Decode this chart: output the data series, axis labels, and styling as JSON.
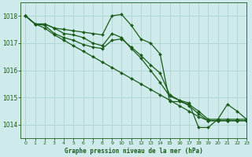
{
  "title": "Graphe pression niveau de la mer (hPa)",
  "bg_color": "#ceeaea",
  "grid_color": "#aed4d4",
  "line_color": "#1a5c1a",
  "xlim": [
    -0.5,
    23
  ],
  "ylim": [
    1013.5,
    1018.5
  ],
  "yticks": [
    1014,
    1015,
    1016,
    1017,
    1018
  ],
  "xticks": [
    0,
    1,
    2,
    3,
    4,
    5,
    6,
    7,
    8,
    9,
    10,
    11,
    12,
    13,
    14,
    15,
    16,
    17,
    18,
    19,
    20,
    21,
    22,
    23
  ],
  "series": [
    [
      1018.0,
      1017.7,
      1017.7,
      1017.55,
      1017.5,
      1017.45,
      1017.4,
      1017.35,
      1017.3,
      1018.0,
      1018.05,
      1017.65,
      1017.15,
      1017.0,
      1016.6,
      1014.85,
      1014.85,
      1014.75,
      1014.5,
      1014.2,
      1014.2,
      1014.75,
      1014.5,
      1014.2
    ],
    [
      1018.0,
      1017.7,
      1017.7,
      1017.55,
      1017.35,
      1017.3,
      1017.2,
      1017.0,
      1016.9,
      1017.35,
      1017.2,
      1016.8,
      1016.45,
      1016.0,
      1015.55,
      1015.05,
      1014.9,
      1014.8,
      1013.9,
      1013.9,
      1014.2,
      1014.2,
      1014.2,
      1014.2
    ],
    [
      1018.0,
      1017.7,
      1017.55,
      1017.3,
      1017.1,
      1016.9,
      1016.7,
      1016.5,
      1016.3,
      1016.1,
      1015.9,
      1015.7,
      1015.5,
      1015.3,
      1015.1,
      1014.9,
      1014.7,
      1014.5,
      1014.3,
      1014.15,
      1014.15,
      1014.15,
      1014.15,
      1014.15
    ],
    [
      1018.0,
      1017.7,
      1017.65,
      1017.35,
      1017.2,
      1017.1,
      1016.95,
      1016.85,
      1016.8,
      1017.1,
      1017.15,
      1016.85,
      1016.55,
      1016.2,
      1015.9,
      1015.1,
      1014.9,
      1014.7,
      1014.4,
      1014.15,
      1014.15,
      1014.15,
      1014.15,
      1014.15
    ]
  ]
}
